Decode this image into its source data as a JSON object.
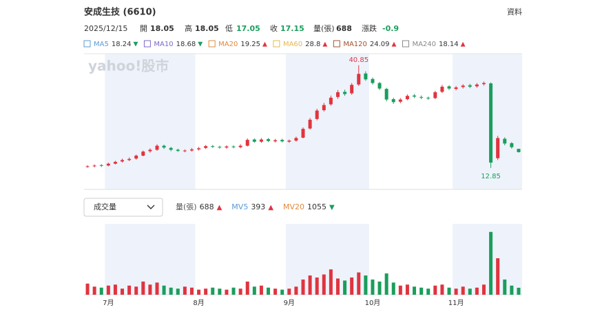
{
  "header": {
    "title": "安成生技 (6610)",
    "link": "資料",
    "date": "2025/12/15",
    "quote_labels": [
      "開",
      "高",
      "低",
      "收",
      "量(張)"
    ],
    "change_label": "漲跌",
    "change": "-0.9"
  },
  "ma_legend": [
    {
      "name": "MA5",
      "value": 18.24,
      "trend": "▼",
      "color": "#5b9bd5"
    },
    {
      "name": "MA10",
      "value": 18.68,
      "trend": "▼",
      "color": "#7b68c8"
    },
    {
      "name": "MA20",
      "value": 19.25,
      "trend": "▲",
      "color": "#e08a3c"
    },
    {
      "name": "MA60",
      "value": 28.8,
      "trend": "▲",
      "color": "#e6b84a"
    },
    {
      "name": "MA120",
      "value": 24.09,
      "trend": "▲",
      "color": "#a0522d"
    },
    {
      "name": "MA240",
      "value": 18.14,
      "trend": "▲",
      "color": "#888888"
    }
  ],
  "chart_data": [
    {
      "type": "candlestick",
      "watermark": "yahoo!股市",
      "up_color": "#e0343f",
      "down_color": "#1a9e5c",
      "ylim": [
        7,
        44
      ],
      "categories": [
        null,
        null,
        null,
        "7月",
        null,
        null,
        null,
        null,
        null,
        null,
        null,
        null,
        null,
        null,
        null,
        null,
        "8月",
        null,
        null,
        null,
        null,
        null,
        null,
        null,
        null,
        null,
        null,
        null,
        null,
        "9月",
        null,
        null,
        null,
        null,
        null,
        null,
        null,
        null,
        null,
        null,
        null,
        "10月",
        null,
        null,
        null,
        null,
        null,
        null,
        null,
        null,
        null,
        null,
        null,
        "11月",
        null,
        null,
        null,
        null,
        null,
        null,
        null,
        null,
        null
      ],
      "open": [
        13.1,
        13.3,
        13.6,
        13.5,
        14.0,
        14.6,
        15.0,
        15.4,
        16.2,
        17.4,
        17.8,
        18.9,
        18.3,
        17.8,
        17.4,
        17.6,
        17.9,
        18.3,
        18.8,
        18.6,
        18.4,
        18.7,
        18.5,
        18.9,
        20.6,
        20.0,
        20.7,
        20.1,
        20.5,
        20.0,
        20.3,
        21.1,
        23.6,
        26.2,
        28.6,
        30.2,
        32.2,
        33.6,
        33.2,
        35.6,
        38.6,
        37.1,
        36.0,
        34.4,
        31.6,
        30.9,
        31.6,
        32.6,
        32.2,
        32.0,
        31.9,
        33.6,
        35.1,
        34.4,
        34.9,
        35.4,
        35.1,
        35.7,
        35.9,
        15.5,
        20.8,
        19.6,
        18.05
      ],
      "high": [
        13.6,
        13.8,
        13.9,
        14.3,
        14.8,
        15.4,
        15.7,
        16.5,
        17.6,
        18.2,
        19.3,
        19.2,
        18.6,
        18.1,
        17.9,
        18.3,
        18.6,
        19.1,
        19.1,
        18.9,
        19.0,
        19.0,
        19.3,
        20.9,
        20.9,
        21.0,
        21.0,
        20.8,
        20.8,
        20.6,
        21.4,
        23.9,
        26.5,
        29.0,
        30.6,
        32.6,
        34.1,
        34.2,
        36.0,
        40.85,
        39.2,
        37.5,
        36.3,
        34.7,
        32.0,
        31.9,
        32.9,
        33.0,
        32.6,
        32.3,
        33.9,
        35.5,
        35.4,
        35.2,
        35.7,
        35.8,
        36.0,
        36.4,
        36.2,
        21.6,
        21.2,
        19.9,
        18.05
      ],
      "low": [
        12.9,
        13.0,
        13.1,
        13.3,
        13.8,
        14.3,
        14.7,
        15.1,
        16.0,
        17.0,
        17.5,
        18.0,
        17.4,
        17.2,
        17.1,
        17.3,
        17.6,
        18.0,
        18.3,
        18.1,
        18.1,
        18.2,
        18.2,
        18.7,
        19.7,
        19.7,
        19.9,
        19.8,
        19.8,
        19.7,
        20.0,
        20.9,
        23.3,
        25.8,
        28.2,
        29.8,
        31.7,
        32.5,
        32.8,
        35.2,
        36.6,
        35.6,
        34.1,
        31.0,
        30.3,
        30.5,
        31.3,
        31.9,
        31.6,
        31.4,
        31.6,
        33.3,
        34.1,
        34.0,
        34.5,
        34.6,
        34.7,
        35.3,
        12.85,
        15.0,
        19.0,
        18.1,
        17.05
      ],
      "close": [
        13.3,
        13.5,
        13.4,
        14.0,
        14.5,
        15.0,
        15.3,
        16.2,
        17.3,
        17.8,
        18.9,
        18.4,
        17.8,
        17.5,
        17.6,
        17.9,
        18.2,
        18.8,
        18.6,
        18.4,
        18.7,
        18.5,
        18.9,
        20.5,
        20.0,
        20.6,
        20.2,
        20.4,
        20.1,
        20.3,
        21.0,
        23.5,
        26.0,
        28.5,
        30.0,
        32.0,
        33.5,
        33.0,
        35.5,
        38.5,
        37.0,
        36.0,
        34.5,
        31.5,
        30.8,
        31.5,
        32.5,
        32.3,
        32.0,
        31.8,
        33.5,
        35.0,
        34.5,
        34.8,
        35.3,
        35.0,
        35.6,
        36.0,
        14.3,
        21.0,
        19.5,
        18.5,
        17.15
      ]
    },
    {
      "type": "bar",
      "selector": "成交量",
      "ylim": [
        0,
        7000
      ],
      "legend": [
        {
          "name": "量(張)",
          "value": 688,
          "trend": "▲",
          "color": "#555555"
        },
        {
          "name": "MV5",
          "value": 393,
          "trend": "▲",
          "color": "#5b9bd5"
        },
        {
          "name": "MV20",
          "value": 1055,
          "trend": "▼",
          "color": "#e08a3c"
        }
      ],
      "values": [
        1100,
        800,
        700,
        900,
        1000,
        600,
        900,
        800,
        1300,
        1000,
        1200,
        900,
        700,
        600,
        800,
        700,
        500,
        600,
        700,
        600,
        500,
        700,
        600,
        1300,
        800,
        900,
        700,
        600,
        500,
        600,
        800,
        1500,
        1900,
        1700,
        2000,
        2500,
        1600,
        1400,
        1700,
        2200,
        1900,
        1500,
        1300,
        2100,
        1200,
        900,
        1000,
        800,
        700,
        600,
        900,
        1000,
        700,
        600,
        800,
        600,
        700,
        1000,
        6200,
        3600,
        1500,
        900,
        688
      ]
    }
  ]
}
